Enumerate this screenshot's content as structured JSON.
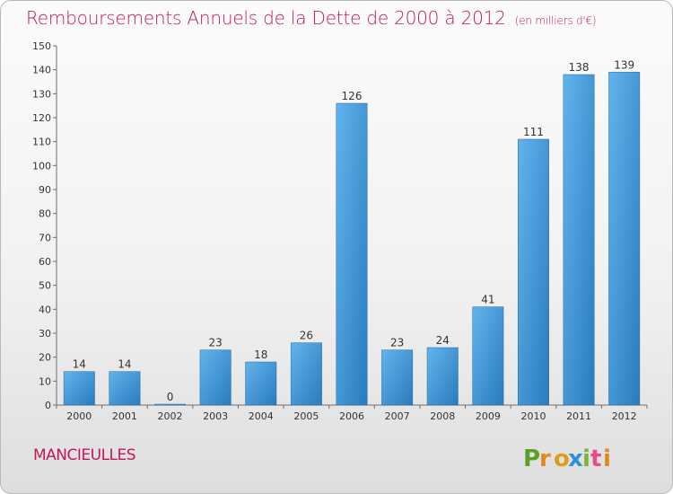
{
  "title": "Remboursements Annuels de la Dette de 2000 à 2012",
  "subtitle": "(en milliers d'€)",
  "commune": "MANCIEULLES",
  "logo_text": "Proxiti",
  "colors": {
    "title": "#c2185b",
    "bar_light": "#63b3ec",
    "bar_dark": "#2a7bbd",
    "logo_letters": [
      "#5aa02c",
      "#e08a1e",
      "#d8a018",
      "#2f8fd5",
      "#7bb43a",
      "#e84a8a",
      "#e08a1e"
    ]
  },
  "chart_data": {
    "type": "bar",
    "title": "Remboursements Annuels de la Dette de 2000 à 2012",
    "subtitle": "(en milliers d'€)",
    "categories": [
      "2000",
      "2001",
      "2002",
      "2003",
      "2004",
      "2005",
      "2006",
      "2007",
      "2008",
      "2009",
      "2010",
      "2011",
      "2012"
    ],
    "values": [
      14,
      14,
      0,
      23,
      18,
      26,
      126,
      23,
      24,
      41,
      111,
      138,
      139
    ],
    "ylim": [
      0,
      150
    ],
    "yticks": [
      0,
      10,
      20,
      30,
      40,
      50,
      60,
      70,
      80,
      90,
      100,
      110,
      120,
      130,
      140,
      150
    ],
    "grid": false,
    "data_labels": true
  }
}
